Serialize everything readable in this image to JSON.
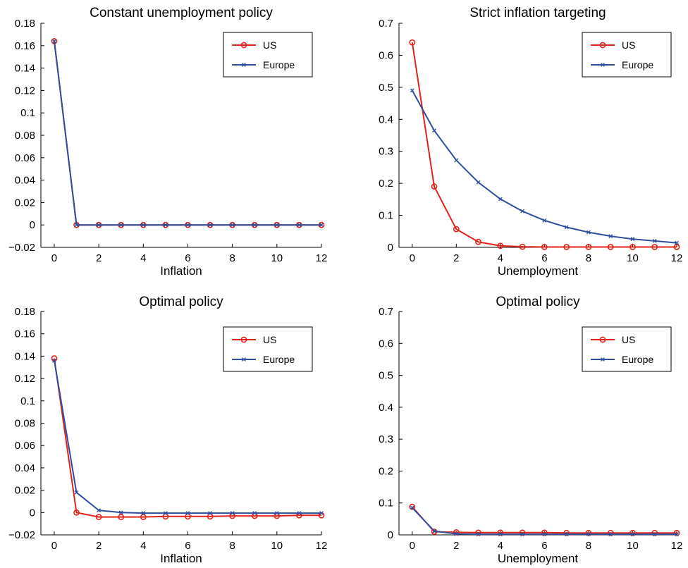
{
  "figure": {
    "colors": {
      "US": "#e2231a",
      "Europe": "#2f4f9e"
    },
    "legend_position": "top-right"
  },
  "chart_data": [
    {
      "type": "line",
      "title": "Constant unemployment policy",
      "xlabel": "Inflation",
      "ylabel": "",
      "xlim": [
        -0.6,
        12
      ],
      "ylim": [
        -0.02,
        0.18
      ],
      "xticks": [
        "0",
        "2",
        "4",
        "6",
        "8",
        "10",
        "12"
      ],
      "yticks": [
        "−0.02",
        "0",
        "0.02",
        "0.04",
        "0.06",
        "0.08",
        "0.1",
        "0.12",
        "0.14",
        "0.16",
        "0.18"
      ],
      "legend": [
        "US",
        "Europe"
      ],
      "x": [
        0,
        1,
        2,
        3,
        4,
        5,
        6,
        7,
        8,
        9,
        10,
        11,
        12
      ],
      "series": [
        {
          "name": "US",
          "marker": "circle",
          "values": [
            0.164,
            0,
            0,
            0,
            0,
            0,
            0,
            0,
            0,
            0,
            0,
            0,
            0
          ]
        },
        {
          "name": "Europe",
          "marker": "x",
          "values": [
            0.164,
            0,
            0,
            0,
            0,
            0,
            0,
            0,
            0,
            0,
            0,
            0,
            0
          ]
        }
      ]
    },
    {
      "type": "line",
      "title": "Strict inflation targeting",
      "xlabel": "Unemployment",
      "ylabel": "",
      "xlim": [
        -0.6,
        12
      ],
      "ylim": [
        0,
        0.7
      ],
      "xticks": [
        "0",
        "2",
        "4",
        "6",
        "8",
        "10",
        "12"
      ],
      "yticks": [
        "0",
        "0.1",
        "0.2",
        "0.3",
        "0.4",
        "0.5",
        "0.6",
        "0.7"
      ],
      "legend": [
        "US",
        "Europe"
      ],
      "x": [
        0,
        1,
        2,
        3,
        4,
        5,
        6,
        7,
        8,
        9,
        10,
        11,
        12
      ],
      "series": [
        {
          "name": "US",
          "marker": "circle",
          "values": [
            0.64,
            0.19,
            0.057,
            0.017,
            0.005,
            0.002,
            0.001,
            0.001,
            0.001,
            0.001,
            0.001,
            0.001,
            0.001
          ]
        },
        {
          "name": "Europe",
          "marker": "x",
          "values": [
            0.49,
            0.365,
            0.272,
            0.203,
            0.151,
            0.113,
            0.084,
            0.063,
            0.047,
            0.035,
            0.026,
            0.02,
            0.014
          ]
        }
      ]
    },
    {
      "type": "line",
      "title": "Optimal policy",
      "xlabel": "Inflation",
      "ylabel": "",
      "xlim": [
        -0.6,
        12
      ],
      "ylim": [
        -0.02,
        0.18
      ],
      "xticks": [
        "0",
        "2",
        "4",
        "6",
        "8",
        "10",
        "12"
      ],
      "yticks": [
        "−0.02",
        "0",
        "0.02",
        "0.04",
        "0.06",
        "0.08",
        "0.1",
        "0.12",
        "0.14",
        "0.16",
        "0.18"
      ],
      "legend": [
        "US",
        "Europe"
      ],
      "x": [
        0,
        1,
        2,
        3,
        4,
        5,
        6,
        7,
        8,
        9,
        10,
        11,
        12
      ],
      "series": [
        {
          "name": "US",
          "marker": "circle",
          "values": [
            0.138,
            0,
            -0.004,
            -0.004,
            -0.004,
            -0.0035,
            -0.0035,
            -0.0035,
            -0.003,
            -0.003,
            -0.003,
            -0.0025,
            -0.0025
          ]
        },
        {
          "name": "Europe",
          "marker": "x",
          "values": [
            0.136,
            0.018,
            0.002,
            0,
            -0.0005,
            -0.0005,
            -0.0005,
            -0.0005,
            -0.0005,
            -0.0005,
            -0.0005,
            -0.0005,
            -0.0005
          ]
        }
      ]
    },
    {
      "type": "line",
      "title": "Optimal policy",
      "xlabel": "Unemployment",
      "ylabel": "",
      "xlim": [
        -0.6,
        12
      ],
      "ylim": [
        0,
        0.7
      ],
      "xticks": [
        "0",
        "2",
        "4",
        "6",
        "8",
        "10",
        "12"
      ],
      "yticks": [
        "0",
        "0.1",
        "0.2",
        "0.3",
        "0.4",
        "0.5",
        "0.6",
        "0.7"
      ],
      "legend": [
        "US",
        "Europe"
      ],
      "x": [
        0,
        1,
        2,
        3,
        4,
        5,
        6,
        7,
        8,
        9,
        10,
        11,
        12
      ],
      "series": [
        {
          "name": "US",
          "marker": "circle",
          "values": [
            0.088,
            0.01,
            0.008,
            0.007,
            0.007,
            0.007,
            0.007,
            0.006,
            0.006,
            0.006,
            0.006,
            0.006,
            0.006
          ]
        },
        {
          "name": "Europe",
          "marker": "x",
          "values": [
            0.085,
            0.012,
            0.003,
            0.002,
            0.002,
            0.002,
            0.002,
            0.002,
            0.002,
            0.002,
            0.002,
            0.002,
            0.002
          ]
        }
      ]
    }
  ]
}
